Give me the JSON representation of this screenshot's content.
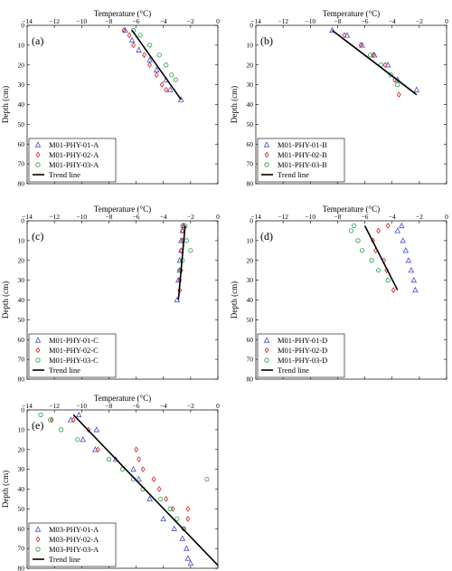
{
  "chart_data": [
    {
      "type": "scatter",
      "panel": "(a)",
      "xlabel": "Temperature (°C)",
      "ylabel": "Depth (cm)",
      "xlim": [
        -14,
        0
      ],
      "ylim": [
        0,
        80
      ],
      "xticks": [
        -14,
        -12,
        -10,
        -8,
        -6,
        -4,
        -2,
        0
      ],
      "yticks": [
        0,
        10,
        20,
        30,
        40,
        50,
        60,
        70,
        80
      ],
      "legend_position": "bottom-left",
      "series": [
        {
          "name": "M01-PHY-01-A",
          "marker": "triangle",
          "color": "#4a4ad0",
          "x": [
            -6.8,
            -6.3,
            -5.8,
            -5.0,
            -4.5,
            -3.8,
            -3.5,
            -2.7
          ],
          "y": [
            2.5,
            7.5,
            12.5,
            17.5,
            22.5,
            27.5,
            32.5,
            37.5
          ]
        },
        {
          "name": "M01-PHY-02-A",
          "marker": "diamond",
          "color": "#d02020",
          "x": [
            -6.9,
            -6.5,
            -6.2,
            -5.4,
            -5.0,
            -4.5,
            -4.1,
            -3.8
          ],
          "y": [
            2.5,
            5,
            10,
            15,
            20,
            25,
            30,
            32.5
          ]
        },
        {
          "name": "M01-PHY-03-A",
          "marker": "circle",
          "color": "#20a040",
          "x": [
            -6.2,
            -5.7,
            -5.0,
            -4.3,
            -3.8,
            -3.4,
            -3.1
          ],
          "y": [
            2.5,
            5,
            10,
            15,
            20,
            25,
            27.5
          ]
        },
        {
          "name": "Trend line",
          "marker": "line",
          "color": "#000000",
          "x": [
            -6.3,
            -2.7
          ],
          "y": [
            2.5,
            37.5
          ]
        }
      ]
    },
    {
      "type": "scatter",
      "panel": "(b)",
      "xlabel": "Temperature (°C)",
      "ylabel": "Depth (cm)",
      "xlim": [
        -14,
        0
      ],
      "ylim": [
        0,
        80
      ],
      "xticks": [
        -14,
        -12,
        -10,
        -8,
        -6,
        -4,
        -2,
        0
      ],
      "yticks": [
        0,
        10,
        20,
        30,
        40,
        50,
        60,
        70,
        80
      ],
      "legend_position": "bottom-left",
      "series": [
        {
          "name": "M01-PHY-01-B",
          "marker": "triangle",
          "color": "#4a4ad0",
          "x": [
            -8.4,
            -7.3,
            -6.2,
            -5.3,
            -4.3,
            -3.6,
            -2.2
          ],
          "y": [
            2.5,
            5,
            10,
            15,
            20,
            27.5,
            32.5
          ]
        },
        {
          "name": "M01-PHY-02-B",
          "marker": "diamond",
          "color": "#d02020",
          "x": [
            -7.5,
            -6.3,
            -5.4,
            -4.5,
            -3.8,
            -3.5
          ],
          "y": [
            5,
            10,
            15,
            20,
            27.5,
            35
          ]
        },
        {
          "name": "M01-PHY-03-B",
          "marker": "circle",
          "color": "#20a040",
          "x": [
            -5.6,
            -4.8,
            -4.1,
            -3.6
          ],
          "y": [
            15,
            20,
            25,
            30
          ]
        },
        {
          "name": "Trend line",
          "marker": "line",
          "color": "#000000",
          "x": [
            -8.4,
            -2.2
          ],
          "y": [
            2.5,
            35
          ]
        }
      ]
    },
    {
      "type": "scatter",
      "panel": "(c)",
      "xlabel": "Temperature (°C)",
      "ylabel": "Depth (cm)",
      "xlim": [
        -14,
        0
      ],
      "ylim": [
        0,
        80
      ],
      "xticks": [
        -14,
        -12,
        -10,
        -8,
        -6,
        -4,
        -2,
        0
      ],
      "yticks": [
        0,
        10,
        20,
        30,
        40,
        50,
        60,
        70,
        80
      ],
      "legend_position": "bottom-left",
      "series": [
        {
          "name": "M01-PHY-01-C",
          "marker": "triangle",
          "color": "#4a4ad0",
          "x": [
            -2.5,
            -2.6,
            -2.7,
            -2.7,
            -2.8,
            -2.8,
            -2.9,
            -3.0
          ],
          "y": [
            2.5,
            5,
            10,
            15,
            20,
            25,
            30,
            40
          ]
        },
        {
          "name": "M01-PHY-02-C",
          "marker": "diamond",
          "color": "#d02020",
          "x": [
            -2.6,
            -2.6,
            -2.6,
            -2.7,
            -2.7,
            -2.8,
            -2.8
          ],
          "y": [
            2.5,
            5,
            10,
            15,
            25,
            30,
            35
          ]
        },
        {
          "name": "M01-PHY-03-C",
          "marker": "circle",
          "color": "#20a040",
          "x": [
            -2.4,
            -2.3,
            -2.0,
            -2.6,
            -2.8
          ],
          "y": [
            2.5,
            10,
            15,
            20,
            25
          ]
        },
        {
          "name": "Trend line",
          "marker": "line",
          "color": "#000000",
          "x": [
            -2.4,
            -2.9
          ],
          "y": [
            2.5,
            40
          ]
        }
      ]
    },
    {
      "type": "scatter",
      "panel": "(d)",
      "xlabel": "Temperature (°C)",
      "ylabel": "Depth (cm)",
      "xlim": [
        -14,
        0
      ],
      "ylim": [
        0,
        80
      ],
      "xticks": [
        -14,
        -12,
        -10,
        -8,
        -6,
        -4,
        -2,
        0
      ],
      "yticks": [
        0,
        10,
        20,
        30,
        40,
        50,
        60,
        70,
        80
      ],
      "legend_position": "bottom-left",
      "series": [
        {
          "name": "M01-PHY-01-D",
          "marker": "triangle",
          "color": "#4a4ad0",
          "x": [
            -3.3,
            -3.6,
            -3.2,
            -3.0,
            -2.8,
            -2.6,
            -2.4,
            -2.3
          ],
          "y": [
            2.5,
            5,
            10,
            15,
            20,
            25,
            30,
            35
          ]
        },
        {
          "name": "M01-PHY-02-D",
          "marker": "diamond",
          "color": "#d02020",
          "x": [
            -4.3,
            -5.0,
            -5.4,
            -5.2,
            -4.6,
            -4.4,
            -3.9
          ],
          "y": [
            2.5,
            5,
            10,
            15,
            20,
            25,
            35
          ]
        },
        {
          "name": "M01-PHY-03-D",
          "marker": "circle",
          "color": "#20a040",
          "x": [
            -6.8,
            -7.0,
            -6.5,
            -6.2,
            -5.5,
            -5.0,
            -4.3
          ],
          "y": [
            2.5,
            5,
            10,
            15,
            20,
            25,
            30
          ]
        },
        {
          "name": "Trend line",
          "marker": "line",
          "color": "#000000",
          "x": [
            -6.0,
            -3.6
          ],
          "y": [
            2.5,
            35
          ]
        }
      ]
    },
    {
      "type": "scatter",
      "panel": "(e)",
      "xlabel": "Temperature (°C)",
      "ylabel": "Depth (cm)",
      "xlim": [
        -14,
        0
      ],
      "ylim": [
        0,
        80
      ],
      "xticks": [
        -14,
        -12,
        -10,
        -8,
        -6,
        -4,
        -2,
        0
      ],
      "yticks": [
        0,
        10,
        20,
        30,
        40,
        50,
        60,
        70,
        80
      ],
      "legend_position": "bottom-left",
      "series": [
        {
          "name": "M03-PHY-01-A",
          "marker": "triangle",
          "color": "#4a4ad0",
          "x": [
            -10.2,
            -10.8,
            -8.9,
            -9.9,
            -9.0,
            -7.5,
            -6.2,
            -5.8,
            -5.0,
            -4.0,
            -3.2,
            -2.6,
            -2.3,
            -2.2,
            -2.0
          ],
          "y": [
            2.5,
            5,
            10,
            15,
            20,
            25,
            30,
            35,
            45,
            55,
            60,
            65,
            70,
            75,
            77.5
          ]
        },
        {
          "name": "M03-PHY-02-A",
          "marker": "diamond",
          "color": "#d02020",
          "x": [
            -12.2,
            -10.6,
            -9.5,
            -8.8,
            -6.0,
            -5.8,
            -5.5,
            -4.7,
            -4.3,
            -3.8,
            -3.3,
            -2.2,
            -2.2,
            -2.5
          ],
          "y": [
            5,
            5,
            10,
            20,
            20,
            25,
            30,
            35,
            40,
            45,
            50,
            50,
            55,
            60
          ]
        },
        {
          "name": "M03-PHY-03-A",
          "marker": "circle",
          "color": "#20a040",
          "x": [
            -13.0,
            -12.3,
            -11.5,
            -10.3,
            -8.0,
            -7.0,
            -6.2,
            -5.5,
            -4.2,
            -3.5,
            -3.0,
            -2.5,
            -0.8
          ],
          "y": [
            2.5,
            5,
            10,
            15,
            25,
            30,
            35,
            40,
            45,
            50,
            55,
            60,
            35
          ]
        },
        {
          "name": "Trend line",
          "marker": "line",
          "color": "#000000",
          "x": [
            -10.6,
            0
          ],
          "y": [
            2.5,
            78.5
          ]
        }
      ]
    }
  ]
}
